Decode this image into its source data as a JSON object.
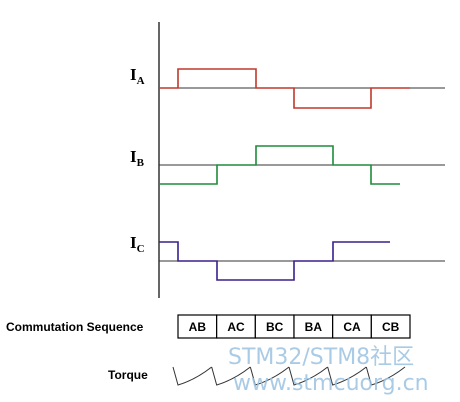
{
  "currents": [
    {
      "name": "I",
      "subscript": "A"
    },
    {
      "name": "I",
      "subscript": "B"
    },
    {
      "name": "I",
      "subscript": "C"
    }
  ],
  "commutation": {
    "label": "Commutation Sequence",
    "steps": [
      "AB",
      "AC",
      "BC",
      "BA",
      "CA",
      "CB"
    ]
  },
  "torque": {
    "label": "Torque"
  },
  "watermark": {
    "line1": "STM32/STM8社区",
    "line2": "www.stmcuorg.cn"
  }
}
